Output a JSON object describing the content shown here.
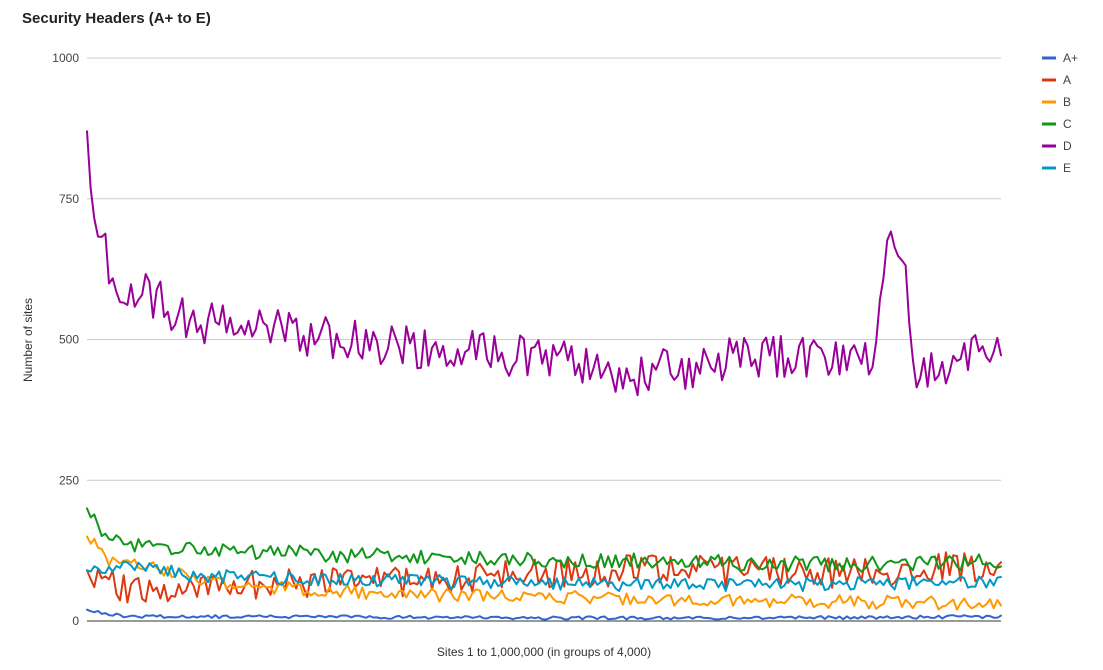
{
  "chart_data": {
    "type": "line",
    "title": "Security Headers (A+ to E)",
    "xlabel": "Sites 1 to 1,000,000 (in groups of 4,000)",
    "ylabel": "Number of sites",
    "ylim": [
      0,
      1000
    ],
    "yticks": [
      0,
      250,
      500,
      750,
      1000
    ],
    "grid": true,
    "legend_position": "right",
    "x_count": 250,
    "series": [
      {
        "name": "A+",
        "color": "#3366cc",
        "control_points": [
          [
            0,
            20
          ],
          [
            10,
            8
          ],
          [
            50,
            8
          ],
          [
            100,
            6
          ],
          [
            150,
            5
          ],
          [
            200,
            6
          ],
          [
            249,
            8
          ]
        ],
        "noise": 3,
        "seed": 1
      },
      {
        "name": "A",
        "color": "#dc3912",
        "control_points": [
          [
            0,
            90
          ],
          [
            10,
            55
          ],
          [
            30,
            60
          ],
          [
            60,
            65
          ],
          [
            100,
            75
          ],
          [
            150,
            90
          ],
          [
            200,
            85
          ],
          [
            249,
            100
          ]
        ],
        "noise": 28,
        "seed": 2
      },
      {
        "name": "B",
        "color": "#ff9900",
        "control_points": [
          [
            0,
            150
          ],
          [
            5,
            110
          ],
          [
            20,
            90
          ],
          [
            40,
            65
          ],
          [
            60,
            55
          ],
          [
            100,
            45
          ],
          [
            150,
            40
          ],
          [
            200,
            35
          ],
          [
            249,
            30
          ]
        ],
        "noise": 12,
        "seed": 3
      },
      {
        "name": "C",
        "color": "#109618",
        "control_points": [
          [
            0,
            200
          ],
          [
            5,
            145
          ],
          [
            20,
            130
          ],
          [
            40,
            125
          ],
          [
            80,
            115
          ],
          [
            120,
            110
          ],
          [
            160,
            105
          ],
          [
            200,
            100
          ],
          [
            249,
            105
          ]
        ],
        "noise": 14,
        "seed": 4
      },
      {
        "name": "D",
        "color": "#990099",
        "control_points": [
          [
            0,
            870
          ],
          [
            2,
            690
          ],
          [
            8,
            610
          ],
          [
            15,
            580
          ],
          [
            30,
            530
          ],
          [
            60,
            510
          ],
          [
            100,
            480
          ],
          [
            120,
            470
          ],
          [
            150,
            440
          ],
          [
            165,
            450
          ],
          [
            175,
            470
          ],
          [
            200,
            470
          ],
          [
            215,
            460
          ],
          [
            218,
            700
          ],
          [
            222,
            660
          ],
          [
            226,
            450
          ],
          [
            240,
            470
          ],
          [
            249,
            510
          ]
        ],
        "noise": 40,
        "seed": 5
      },
      {
        "name": "E",
        "color": "#0099c6",
        "control_points": [
          [
            0,
            90
          ],
          [
            10,
            100
          ],
          [
            30,
            80
          ],
          [
            60,
            75
          ],
          [
            100,
            70
          ],
          [
            150,
            65
          ],
          [
            200,
            65
          ],
          [
            249,
            70
          ]
        ],
        "noise": 12,
        "seed": 6
      }
    ]
  }
}
